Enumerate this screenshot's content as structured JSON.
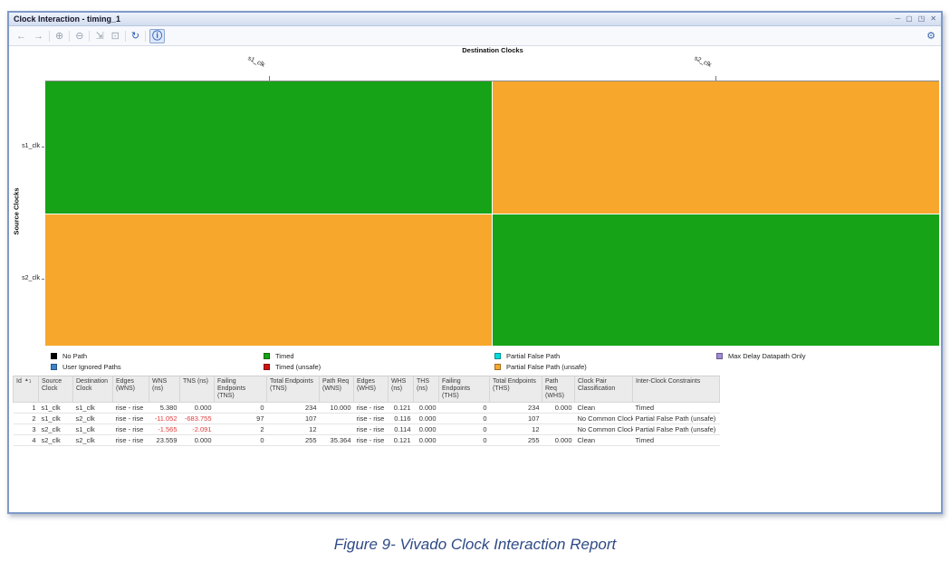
{
  "window": {
    "title": "Clock Interaction - timing_1",
    "controls": [
      {
        "name": "minimize",
        "glyph": "─"
      },
      {
        "name": "float",
        "glyph": "▢"
      },
      {
        "name": "maximize",
        "glyph": "◳"
      },
      {
        "name": "close",
        "glyph": "✕"
      }
    ]
  },
  "toolbar": {
    "icons": [
      {
        "name": "back",
        "glyph": "←",
        "enabled": false
      },
      {
        "name": "forward",
        "glyph": "→",
        "enabled": false
      },
      {
        "name": "zoom-in",
        "glyph": "⊕",
        "enabled": false
      },
      {
        "name": "zoom-out",
        "glyph": "⊖",
        "enabled": false
      },
      {
        "name": "zoom-fit",
        "glyph": "⇲",
        "enabled": false
      },
      {
        "name": "zoom-selection",
        "glyph": "⊡",
        "enabled": false
      },
      {
        "name": "refresh",
        "glyph": "↻",
        "enabled": true
      },
      {
        "name": "info",
        "glyph": "ⓘ",
        "enabled": true,
        "selected": true
      }
    ],
    "settings_icon": "⚙"
  },
  "matrix": {
    "x_axis_title": "Destination Clocks",
    "y_axis_title": "Source Clocks",
    "destination_clocks": [
      "s1_clk",
      "s2_clk"
    ],
    "source_clocks": [
      "s1_clk",
      "s2_clk"
    ],
    "cells": [
      [
        "timed",
        "partial_false_path_unsafe"
      ],
      [
        "partial_false_path_unsafe",
        "timed"
      ]
    ]
  },
  "colors": {
    "timed": "#17a317",
    "timed_unsafe": "#cc1414",
    "no_path": "#000000",
    "user_ignored_paths": "#3d85c6",
    "partial_false_path": "#00dcdc",
    "partial_false_path_unsafe": "#f8a72d",
    "max_delay_datapath_only": "#a08cd8",
    "negative_value": "#e03c3c"
  },
  "legend": {
    "groups": [
      {
        "items": [
          {
            "label": "No Path",
            "color_key": "no_path"
          },
          {
            "label": "User Ignored Paths",
            "color_key": "user_ignored_paths"
          }
        ]
      },
      {
        "items": [
          {
            "label": "Timed",
            "color_key": "timed"
          },
          {
            "label": "Timed (unsafe)",
            "color_key": "timed_unsafe"
          }
        ]
      },
      {
        "items": [
          {
            "label": "Partial False Path",
            "color_key": "partial_false_path"
          },
          {
            "label": "Partial False Path (unsafe)",
            "color_key": "partial_false_path_unsafe"
          }
        ]
      },
      {
        "items": [
          {
            "label": "Max Delay Datapath Only",
            "color_key": "max_delay_datapath_only"
          }
        ]
      }
    ]
  },
  "table": {
    "sort_glyph": "▲",
    "sort_number": "1",
    "columns": [
      "Id",
      "Source Clock",
      "Destination Clock",
      "Edges (WNS)",
      "WNS (ns)",
      "TNS (ns)",
      "Failing Endpoints (TNS)",
      "Total Endpoints (TNS)",
      "Path Req (WNS)",
      "Edges (WHS)",
      "WHS (ns)",
      "THS (ns)",
      "Failing Endpoints (THS)",
      "Total Endpoints (THS)",
      "Path Req (WHS)",
      "Clock Pair Classification",
      "Inter-Clock Constraints"
    ],
    "rows": [
      [
        "1",
        "s1_clk",
        "s1_clk",
        "rise - rise",
        "5.380",
        "0.000",
        "0",
        "234",
        "10.000",
        "rise - rise",
        "0.121",
        "0.000",
        "0",
        "234",
        "0.000",
        "Clean",
        "Timed"
      ],
      [
        "2",
        "s1_clk",
        "s2_clk",
        "rise - rise",
        "-11.052",
        "-683.755",
        "97",
        "107",
        "",
        "rise - rise",
        "0.116",
        "0.000",
        "0",
        "107",
        "",
        "No Common Clock",
        "Partial False Path (unsafe)"
      ],
      [
        "3",
        "s2_clk",
        "s1_clk",
        "rise - rise",
        "-1.565",
        "-2.091",
        "2",
        "12",
        "",
        "rise - rise",
        "0.114",
        "0.000",
        "0",
        "12",
        "",
        "No Common Clock",
        "Partial False Path (unsafe)"
      ],
      [
        "4",
        "s2_clk",
        "s2_clk",
        "rise - rise",
        "23.559",
        "0.000",
        "0",
        "255",
        "35.364",
        "rise - rise",
        "0.121",
        "0.000",
        "0",
        "255",
        "0.000",
        "Clean",
        "Timed"
      ]
    ]
  },
  "caption": "Figure 9- Vivado Clock Interaction Report"
}
